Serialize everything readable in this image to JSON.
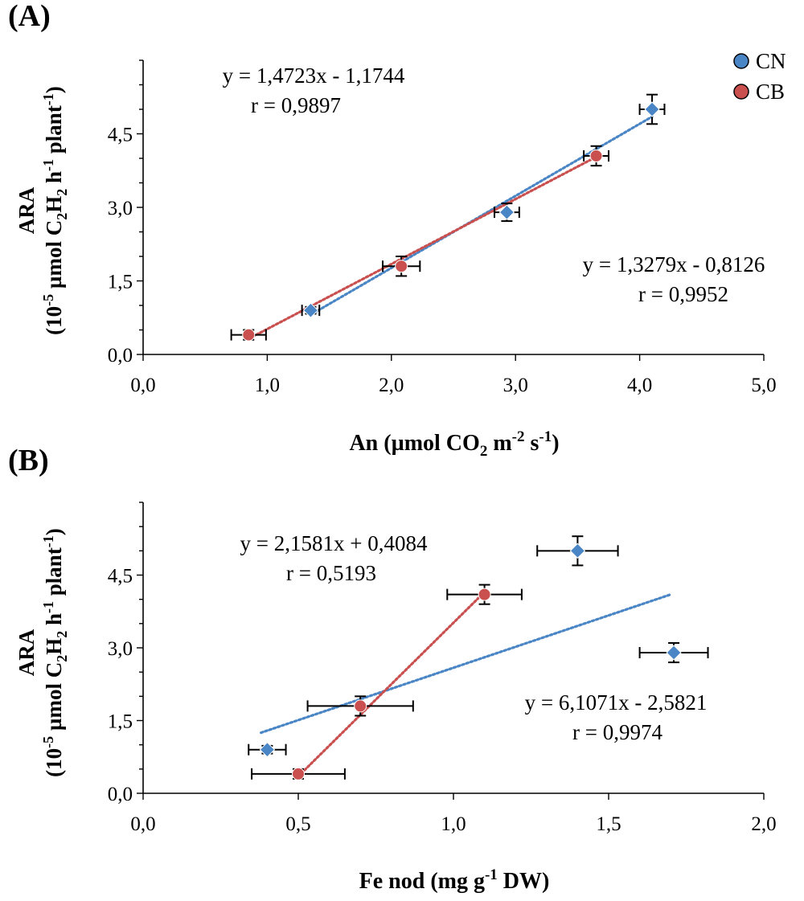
{
  "chart_data": [
    {
      "type": "scatter",
      "panel_label": "(A)",
      "xlabel": {
        "main": "An (µmol  CO",
        "sub1": "2",
        "mid": " m",
        "sup1": "-2",
        "mid2": " s",
        "sup2": "-1",
        "end": ")"
      },
      "ylabel": {
        "line1": "ARA",
        "line2": {
          "a": "(10",
          "sup1": "-5",
          "b": " µmol C",
          "sub1": "2",
          "c": "H",
          "sub2": "2",
          "d": " h",
          "sup2": "-1",
          "e": " plant",
          "sup3": "-1",
          "f": ")"
        }
      },
      "xlim": [
        0,
        5
      ],
      "ylim": [
        0,
        6
      ],
      "xticks": [
        {
          "value": 0,
          "label": "0,0"
        },
        {
          "value": 1,
          "label": "1,0"
        },
        {
          "value": 2,
          "label": "2,0"
        },
        {
          "value": 3,
          "label": "3,0"
        },
        {
          "value": 4,
          "label": "4,0"
        },
        {
          "value": 5,
          "label": "5,0"
        }
      ],
      "yticks": [
        {
          "value": 0,
          "label": "0,0"
        },
        {
          "value": 1.5,
          "label": "1,5"
        },
        {
          "value": 3,
          "label": "3,0"
        },
        {
          "value": 4.5,
          "label": "4,5"
        }
      ],
      "legend": [
        {
          "name": "CN",
          "color": "#4a86c5"
        },
        {
          "name": "CB",
          "color": "#c9504f"
        }
      ],
      "series": [
        {
          "name": "CN",
          "color": "#4a86c5",
          "marker": "diamond",
          "points": [
            {
              "x": 1.35,
              "y": 0.9,
              "xerr": 0.07,
              "yerr": 0.07
            },
            {
              "x": 2.93,
              "y": 2.9,
              "xerr": 0.1,
              "yerr": 0.18
            },
            {
              "x": 4.1,
              "y": 5.0,
              "xerr": 0.1,
              "yerr": 0.3
            }
          ],
          "trendline": {
            "x1": 1.35,
            "y1": 0.81,
            "x2": 4.1,
            "y2": 4.85
          }
        },
        {
          "name": "CB",
          "color": "#c9504f",
          "marker": "circle",
          "points": [
            {
              "x": 0.85,
              "y": 0.4,
              "xerr": 0.14,
              "yerr": 0.1
            },
            {
              "x": 2.08,
              "y": 1.8,
              "xerr": 0.15,
              "yerr": 0.2
            },
            {
              "x": 3.65,
              "y": 4.05,
              "xerr": 0.1,
              "yerr": 0.2
            }
          ],
          "trendline": {
            "x1": 0.85,
            "y1": 0.32,
            "x2": 3.65,
            "y2": 4.03
          }
        }
      ],
      "annotations": [
        {
          "line1": "y = 1,4723x - 1,1744",
          "line2": "r = 0,9897",
          "pos": "top-left"
        },
        {
          "line1": "y = 1,3279x - 0,8126",
          "line2": "r = 0,9952",
          "pos": "right"
        }
      ]
    },
    {
      "type": "scatter",
      "panel_label": "(B)",
      "xlabel": {
        "main": "Fe nod (mg g",
        "sup1": "-1",
        "end": " DW)"
      },
      "ylabel": {
        "line1": "ARA",
        "line2": {
          "a": "(10",
          "sup1": "-5",
          "b": " µmol C",
          "sub1": "2",
          "c": "H",
          "sub2": "2",
          "d": " h",
          "sup2": "-1",
          "e": " plant",
          "sup3": "-1",
          "f": ")"
        }
      },
      "xlim": [
        0,
        2
      ],
      "ylim": [
        0,
        6
      ],
      "xticks": [
        {
          "value": 0,
          "label": "0,0"
        },
        {
          "value": 0.5,
          "label": "0,5"
        },
        {
          "value": 1,
          "label": "1,0"
        },
        {
          "value": 1.5,
          "label": "1,5"
        },
        {
          "value": 2,
          "label": "2,0"
        }
      ],
      "yticks": [
        {
          "value": 0,
          "label": "0,0"
        },
        {
          "value": 1.5,
          "label": "1,5"
        },
        {
          "value": 3,
          "label": "3,0"
        },
        {
          "value": 4.5,
          "label": "4,5"
        }
      ],
      "series": [
        {
          "name": "CN",
          "color": "#4a86c5",
          "marker": "diamond",
          "points": [
            {
              "x": 0.4,
              "y": 0.9,
              "xerr": 0.06,
              "yerr": 0.08
            },
            {
              "x": 1.4,
              "y": 5.0,
              "xerr": 0.13,
              "yerr": 0.3
            },
            {
              "x": 1.71,
              "y": 2.9,
              "xerr": 0.11,
              "yerr": 0.2
            }
          ],
          "trendline": {
            "x1": 0.38,
            "y1": 1.25,
            "x2": 1.7,
            "y2": 4.1
          }
        },
        {
          "name": "CB",
          "color": "#c9504f",
          "marker": "circle",
          "points": [
            {
              "x": 0.5,
              "y": 0.4,
              "xerr": 0.15,
              "yerr": 0.1
            },
            {
              "x": 0.7,
              "y": 1.8,
              "xerr": 0.17,
              "yerr": 0.2
            },
            {
              "x": 1.1,
              "y": 4.1,
              "xerr": 0.12,
              "yerr": 0.2
            }
          ],
          "trendline": {
            "x1": 0.5,
            "y1": 0.35,
            "x2": 1.1,
            "y2": 4.15
          }
        }
      ],
      "annotations": [
        {
          "line1": "y = 2,1581x + 0,4084",
          "line2": "r = 0,5193",
          "pos": "top-left"
        },
        {
          "line1": "y = 6,1071x - 2,5821",
          "line2": "r = 0,9974",
          "pos": "right"
        }
      ]
    }
  ]
}
